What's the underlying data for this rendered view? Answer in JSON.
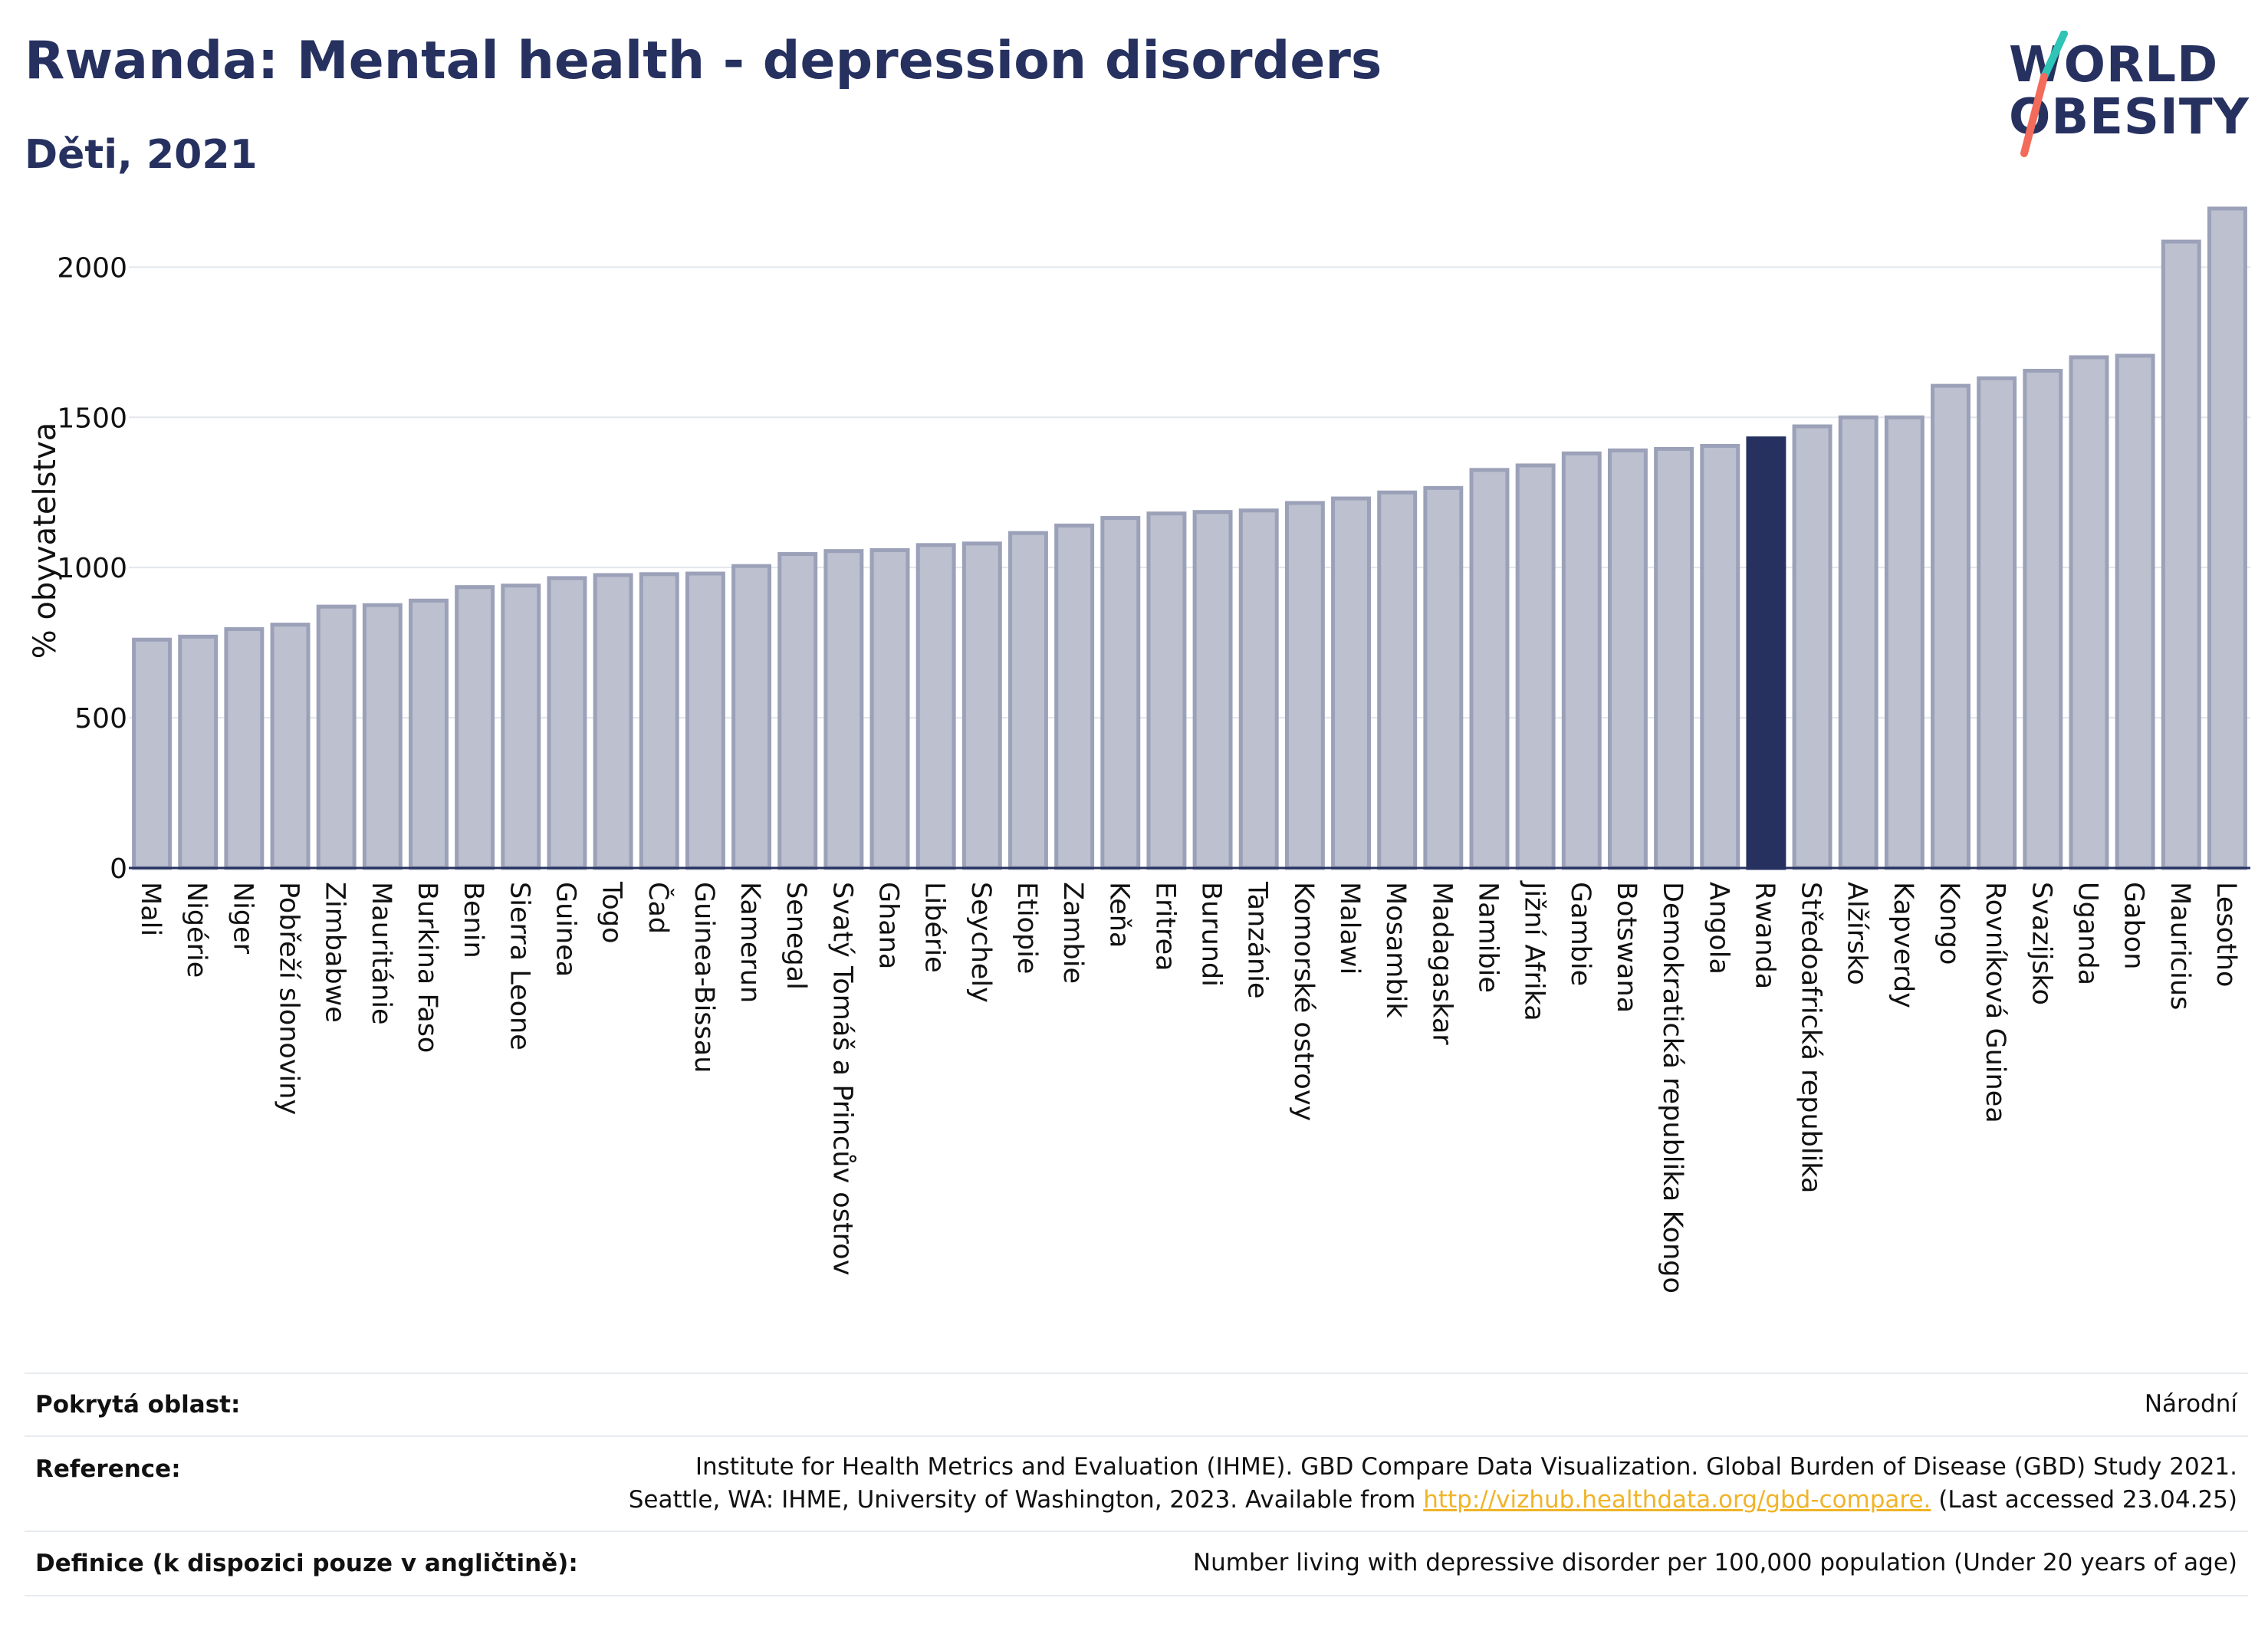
{
  "header": {
    "title": "Rwanda: Mental health - depression disorders",
    "subtitle": "Děti, 2021"
  },
  "logo": {
    "line1": "WORLD",
    "line2": "OBESITY",
    "accent_teal": "#2ec4b6",
    "accent_coral": "#f26b5b"
  },
  "colors": {
    "bar_default": "#bcc0cf",
    "bar_border": "#9ba1b8",
    "bar_highlight": "#263160",
    "axis_text": "#111111",
    "grid": "#e3e6ec"
  },
  "chart_data": {
    "type": "bar",
    "ylabel": "% obyvatelstva",
    "ylim": [
      0,
      2200
    ],
    "yticks": [
      0,
      500,
      1000,
      1500,
      2000
    ],
    "grid": true,
    "highlight": "Rwanda",
    "categories": [
      "Mali",
      "Nigérie",
      "Niger",
      "Pobřeží slonoviny",
      "Zimbabwe",
      "Mauritánie",
      "Burkina Faso",
      "Benin",
      "Sierra Leone",
      "Guinea",
      "Togo",
      "Čad",
      "Guinea-Bissau",
      "Kamerun",
      "Senegal",
      "Svatý Tomáš a Princův ostrov",
      "Ghana",
      "Libérie",
      "Seychely",
      "Etiopie",
      "Zambie",
      "Keňa",
      "Eritrea",
      "Burundi",
      "Tanzánie",
      "Komorské ostrovy",
      "Malawi",
      "Mosambik",
      "Madagaskar",
      "Namibie",
      "Jižní Afrika",
      "Gambie",
      "Botswana",
      "Demokratická republika Kongo",
      "Angola",
      "Rwanda",
      "Středoafrická republika",
      "Alžírsko",
      "Kapverdy",
      "Kongo",
      "Rovníková Guinea",
      "Svazijsko",
      "Uganda",
      "Gabon",
      "Mauricius",
      "Lesotho"
    ],
    "values": [
      760,
      770,
      795,
      810,
      870,
      875,
      890,
      935,
      940,
      965,
      975,
      978,
      980,
      1005,
      1045,
      1055,
      1058,
      1075,
      1080,
      1115,
      1140,
      1165,
      1180,
      1185,
      1190,
      1215,
      1230,
      1250,
      1265,
      1325,
      1340,
      1380,
      1390,
      1395,
      1405,
      1430,
      1470,
      1500,
      1500,
      1605,
      1630,
      1655,
      1700,
      1705,
      2085,
      2195
    ]
  },
  "footer": {
    "coverage_label": "Pokrytá oblast:",
    "coverage_value": "Národní",
    "reference_label": "Reference:",
    "reference_line1": "Institute for Health Metrics and Evaluation (IHME). GBD Compare Data Visualization. Global Burden of Disease (GBD) Study 2021.",
    "reference_line2_pre": "Seattle, WA: IHME, University of Washington, 2023. Available from",
    "reference_link": "http://vizhub.healthdata.org/gbd-compare.",
    "reference_line2_post": "(Last accessed 23.04.25)",
    "definition_label": "Definice (k dispozici pouze v angličtině):",
    "definition_value": "Number living with depressive disorder per 100,000 population (Under 20 years of age)"
  }
}
